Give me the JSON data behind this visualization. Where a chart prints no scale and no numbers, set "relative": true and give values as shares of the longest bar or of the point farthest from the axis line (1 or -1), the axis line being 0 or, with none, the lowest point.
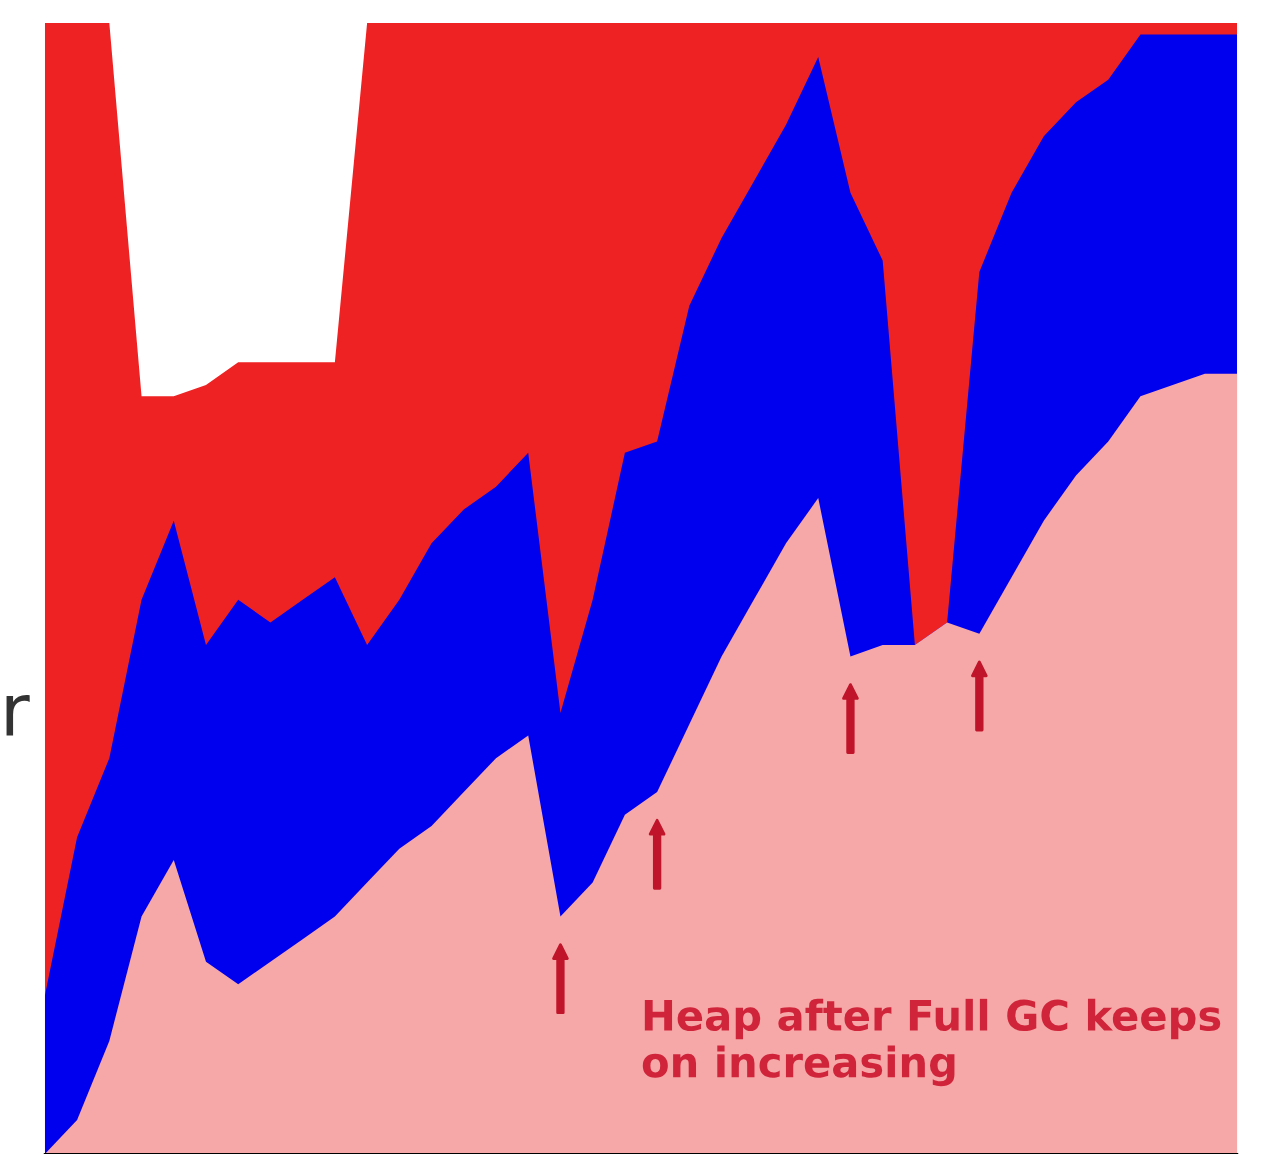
{
  "chart_data": {
    "type": "area",
    "relative": true,
    "legend": false,
    "categories": [
      null,
      null,
      null,
      null,
      null,
      null,
      null,
      null,
      null,
      null,
      null,
      null,
      null,
      null,
      null,
      null,
      null,
      null,
      null,
      null,
      null,
      null,
      null,
      null,
      null,
      null,
      null,
      null,
      null,
      null,
      null,
      null,
      null,
      null,
      null,
      null,
      null,
      null
    ],
    "series": [
      {
        "color": "#ee2222",
        "values": [
          1,
          1,
          1,
          0.67,
          0.67,
          0.68,
          0.7,
          0.7,
          0.7,
          0.7,
          1,
          1,
          1,
          1,
          1,
          1,
          1,
          1,
          1,
          1,
          1,
          1,
          1,
          1,
          1,
          1,
          1,
          1,
          1,
          1,
          1,
          1,
          1,
          1,
          1,
          1,
          1,
          1
        ]
      },
      {
        "color": "#0000ee",
        "values": [
          0.14,
          0.28,
          0.35,
          0.49,
          0.56,
          0.45,
          0.49,
          0.47,
          0.49,
          0.51,
          0.45,
          0.49,
          0.54,
          0.57,
          0.59,
          0.62,
          0.39,
          0.49,
          0.62,
          0.63,
          0.75,
          0.81,
          0.86,
          0.91,
          0.97,
          0.85,
          0.79,
          0.45,
          0.47,
          0.78,
          0.85,
          0.9,
          0.93,
          0.95,
          0.99,
          0.99,
          0.99,
          0.99
        ]
      },
      {
        "color": "#f6a8a8",
        "values": [
          0,
          0.03,
          0.1,
          0.21,
          0.26,
          0.17,
          0.15,
          0.17,
          0.19,
          0.21,
          0.24,
          0.27,
          0.29,
          0.32,
          0.35,
          0.37,
          0.21,
          0.24,
          0.3,
          0.32,
          0.38,
          0.44,
          0.49,
          0.54,
          0.58,
          0.44,
          0.45,
          0.45,
          0.47,
          0.46,
          0.51,
          0.56,
          0.6,
          0.63,
          0.67,
          0.68,
          0.69,
          0.69
        ]
      }
    ],
    "annotations": [
      "r",
      {
        "text": "Heap after Full GC keeps on increasing"
      }
    ]
  }
}
